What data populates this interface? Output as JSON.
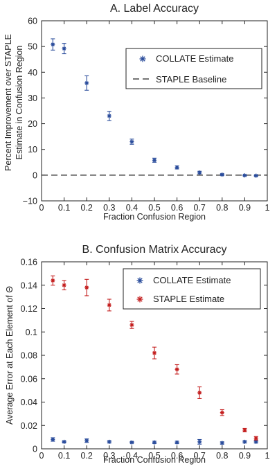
{
  "chart_data": [
    {
      "type": "scatter",
      "title": "A. Label Accuracy",
      "xlabel": "Fraction Confusion Region",
      "ylabel_lines": [
        "Percent Improvement over STAPLE",
        "Estimate in Confusion Region"
      ],
      "xlim": [
        0,
        1
      ],
      "ylim": [
        -10,
        60
      ],
      "xticks": [
        0,
        0.1,
        0.2,
        0.3,
        0.4,
        0.5,
        0.6,
        0.7,
        0.8,
        0.9,
        1
      ],
      "xtick_labels": [
        "0",
        "0.1",
        "0.2",
        "0.3",
        "0.4",
        "0.5",
        "0.6",
        "0.7",
        "0.8",
        "0.9",
        "1"
      ],
      "yticks": [
        -10,
        0,
        10,
        20,
        30,
        40,
        50,
        60
      ],
      "ytick_labels": [
        "−10",
        "0",
        "10",
        "20",
        "30",
        "40",
        "50",
        "60"
      ],
      "grid": false,
      "legend_position": "top-right",
      "series": [
        {
          "name": "COLLATE Estimate",
          "color": "#2b4d9c",
          "marker": "asterisk",
          "x": [
            0.05,
            0.1,
            0.2,
            0.3,
            0.4,
            0.5,
            0.6,
            0.7,
            0.8,
            0.9,
            0.95
          ],
          "y": [
            50.8,
            49.2,
            35.8,
            23.0,
            13.0,
            5.8,
            3.0,
            1.0,
            0.2,
            -0.1,
            -0.2
          ],
          "err": [
            2.2,
            2.0,
            2.8,
            1.8,
            1.0,
            0.8,
            0.6,
            0.5,
            0.3,
            0.2,
            0.2
          ]
        }
      ],
      "baseline": {
        "name": "STAPLE Baseline",
        "y": 0,
        "style": "dashed",
        "color": "#222222"
      }
    },
    {
      "type": "scatter",
      "title": "B. Confusion Matrix Accuracy",
      "xlabel": "Fraction Confusion Region",
      "ylabel": "Average Error at Each Element of Θ",
      "xlim": [
        0,
        1
      ],
      "ylim": [
        0,
        0.16
      ],
      "xticks": [
        0,
        0.1,
        0.2,
        0.3,
        0.4,
        0.5,
        0.6,
        0.7,
        0.8,
        0.9,
        1
      ],
      "xtick_labels": [
        "0",
        "0.1",
        "0.2",
        "0.3",
        "0.4",
        "0.5",
        "0.6",
        "0.7",
        "0.8",
        "0.9",
        "1"
      ],
      "yticks": [
        0,
        0.02,
        0.04,
        0.06,
        0.08,
        0.1,
        0.12,
        0.14,
        0.16
      ],
      "ytick_labels": [
        "0",
        "0.02",
        "0.04",
        "0.06",
        "0.08",
        "0.1",
        "0.12",
        "0.14",
        "0.16"
      ],
      "grid": false,
      "legend_position": "top-right",
      "series": [
        {
          "name": "COLLATE Estimate",
          "color": "#2b4d9c",
          "marker": "asterisk",
          "x": [
            0.05,
            0.1,
            0.2,
            0.3,
            0.4,
            0.5,
            0.6,
            0.7,
            0.8,
            0.9,
            0.95
          ],
          "y": [
            0.008,
            0.006,
            0.007,
            0.006,
            0.0055,
            0.0055,
            0.0055,
            0.006,
            0.005,
            0.006,
            0.006
          ],
          "err": [
            0.0015,
            0.0007,
            0.0015,
            0.001,
            0.0006,
            0.001,
            0.001,
            0.002,
            0.001,
            0.001,
            0.001
          ]
        },
        {
          "name": "STAPLE Estimate",
          "color": "#c41e1e",
          "marker": "asterisk",
          "x": [
            0.05,
            0.1,
            0.2,
            0.3,
            0.4,
            0.5,
            0.6,
            0.7,
            0.8,
            0.9,
            0.95
          ],
          "y": [
            0.144,
            0.14,
            0.138,
            0.123,
            0.106,
            0.082,
            0.068,
            0.048,
            0.031,
            0.016,
            0.009
          ],
          "err": [
            0.004,
            0.004,
            0.007,
            0.005,
            0.003,
            0.005,
            0.004,
            0.005,
            0.0025,
            0.0015,
            0.0015
          ]
        }
      ]
    }
  ]
}
